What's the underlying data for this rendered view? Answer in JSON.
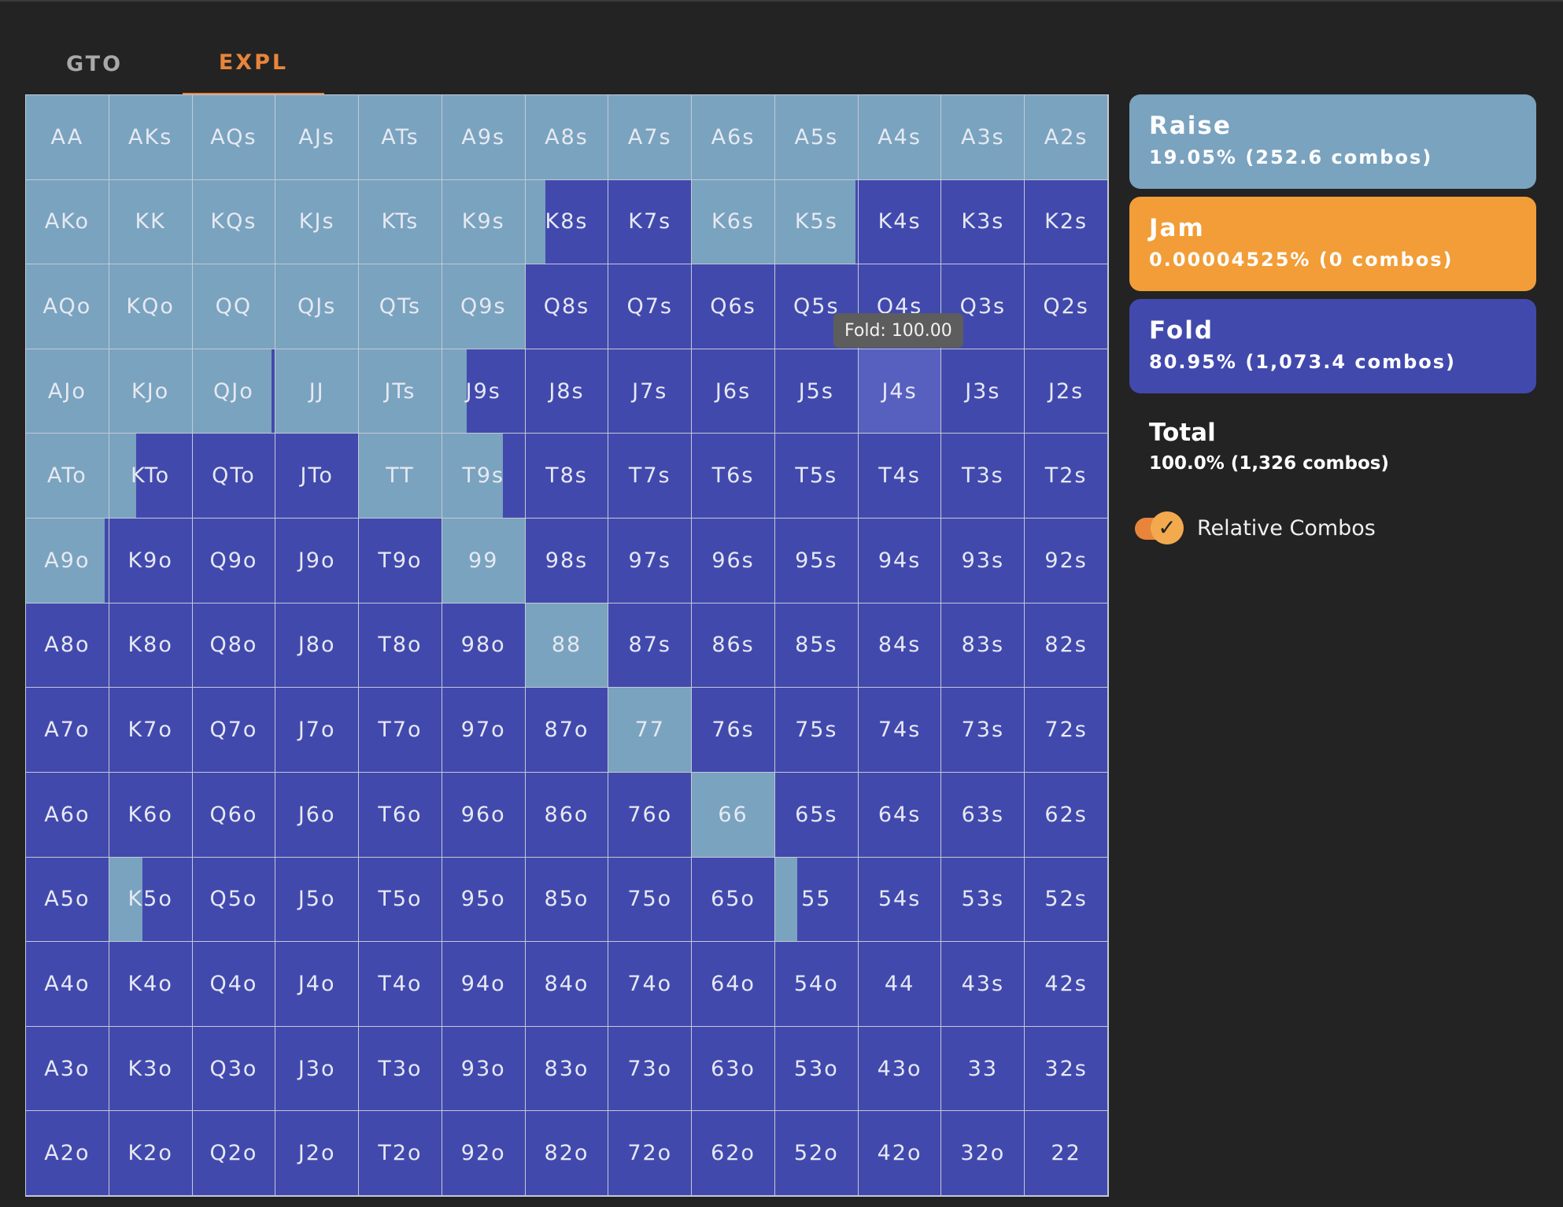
{
  "tabs": {
    "gto": "GTO",
    "expl": "EXPL"
  },
  "colors": {
    "raise": "#7aa3bf",
    "jam": "#f29d38",
    "fold": "#4249ad",
    "accent": "#e8853a"
  },
  "grid": {
    "rows": [
      [
        "AA",
        "AKs",
        "AQs",
        "AJs",
        "ATs",
        "A9s",
        "A8s",
        "A7s",
        "A6s",
        "A5s",
        "A4s",
        "A3s",
        "A2s"
      ],
      [
        "AKo",
        "KK",
        "KQs",
        "KJs",
        "KTs",
        "K9s",
        "K8s",
        "K7s",
        "K6s",
        "K5s",
        "K4s",
        "K3s",
        "K2s"
      ],
      [
        "AQo",
        "KQo",
        "QQ",
        "QJs",
        "QTs",
        "Q9s",
        "Q8s",
        "Q7s",
        "Q6s",
        "Q5s",
        "Q4s",
        "Q3s",
        "Q2s"
      ],
      [
        "AJo",
        "KJo",
        "QJo",
        "JJ",
        "JTs",
        "J9s",
        "J8s",
        "J7s",
        "J6s",
        "J5s",
        "J4s",
        "J3s",
        "J2s"
      ],
      [
        "ATo",
        "KTo",
        "QTo",
        "JTo",
        "TT",
        "T9s",
        "T8s",
        "T7s",
        "T6s",
        "T5s",
        "T4s",
        "T3s",
        "T2s"
      ],
      [
        "A9o",
        "K9o",
        "Q9o",
        "J9o",
        "T9o",
        "99",
        "98s",
        "97s",
        "96s",
        "95s",
        "94s",
        "93s",
        "92s"
      ],
      [
        "A8o",
        "K8o",
        "Q8o",
        "J8o",
        "T8o",
        "98o",
        "88",
        "87s",
        "86s",
        "85s",
        "84s",
        "83s",
        "82s"
      ],
      [
        "A7o",
        "K7o",
        "Q7o",
        "J7o",
        "T7o",
        "97o",
        "87o",
        "77",
        "76s",
        "75s",
        "74s",
        "73s",
        "72s"
      ],
      [
        "A6o",
        "K6o",
        "Q6o",
        "J6o",
        "T6o",
        "96o",
        "86o",
        "76o",
        "66",
        "65s",
        "64s",
        "63s",
        "62s"
      ],
      [
        "A5o",
        "K5o",
        "Q5o",
        "J5o",
        "T5o",
        "95o",
        "85o",
        "75o",
        "65o",
        "55",
        "54s",
        "53s",
        "52s"
      ],
      [
        "A4o",
        "K4o",
        "Q4o",
        "J4o",
        "T4o",
        "94o",
        "84o",
        "74o",
        "64o",
        "54o",
        "44",
        "43s",
        "42s"
      ],
      [
        "A3o",
        "K3o",
        "Q3o",
        "J3o",
        "T3o",
        "93o",
        "83o",
        "73o",
        "63o",
        "53o",
        "43o",
        "33",
        "32s"
      ],
      [
        "A2o",
        "K2o",
        "Q2o",
        "J2o",
        "T2o",
        "92o",
        "82o",
        "72o",
        "62o",
        "52o",
        "42o",
        "32o",
        "22"
      ]
    ],
    "raise_freq": [
      [
        1,
        1,
        1,
        1,
        1,
        1,
        1,
        1,
        1,
        1,
        1,
        1,
        1
      ],
      [
        1,
        1,
        1,
        1,
        1,
        1,
        0.24,
        0,
        1,
        0.97,
        0,
        0,
        0
      ],
      [
        1,
        1,
        1,
        1,
        1,
        1,
        0,
        0,
        0,
        0,
        0,
        0,
        0
      ],
      [
        1,
        1,
        0.96,
        1,
        1,
        0.3,
        0,
        0,
        0,
        0,
        0,
        0,
        0
      ],
      [
        1,
        0.33,
        0,
        0,
        1,
        0.74,
        0,
        0,
        0,
        0,
        0,
        0,
        0
      ],
      [
        0.95,
        0,
        0,
        0,
        0,
        1,
        0,
        0,
        0,
        0,
        0,
        0,
        0
      ],
      [
        0,
        0,
        0,
        0,
        0,
        0,
        1,
        0,
        0,
        0,
        0,
        0,
        0
      ],
      [
        0,
        0,
        0,
        0,
        0,
        0,
        0,
        1,
        0,
        0,
        0,
        0,
        0
      ],
      [
        0,
        0,
        0,
        0,
        0,
        0,
        0,
        0,
        1,
        0,
        0,
        0,
        0
      ],
      [
        0,
        0.4,
        0,
        0,
        0,
        0,
        0,
        0,
        0,
        0.27,
        0,
        0,
        0
      ],
      [
        0,
        0,
        0,
        0,
        0,
        0,
        0,
        0,
        0,
        0,
        0,
        0,
        0
      ],
      [
        0,
        0,
        0,
        0,
        0,
        0,
        0,
        0,
        0,
        0,
        0,
        0,
        0
      ],
      [
        0,
        0,
        0,
        0,
        0,
        0,
        0,
        0,
        0,
        0,
        0,
        0,
        0
      ]
    ],
    "hovered": "J4s",
    "tooltip": "Fold: 100.00"
  },
  "actions": {
    "raise": {
      "title": "Raise",
      "detail": "19.05% (252.6 combos)"
    },
    "jam": {
      "title": "Jam",
      "detail": "0.00004525% (0 combos)"
    },
    "fold": {
      "title": "Fold",
      "detail": "80.95% (1,073.4 combos)"
    }
  },
  "total": {
    "title": "Total",
    "detail": "100.0% (1,326 combos)"
  },
  "relative_combos": {
    "label": "Relative Combos",
    "checked": true,
    "check_glyph": "✓"
  }
}
